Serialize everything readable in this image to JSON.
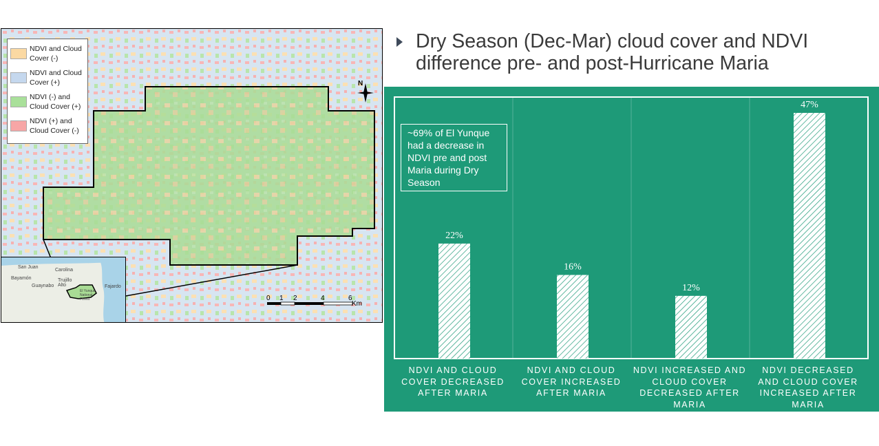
{
  "title": "Dry Season (Dec-Mar) cloud cover and NDVI difference pre- and post-Hurricane Maria",
  "map": {
    "legend": [
      {
        "label": "NDVI and Cloud Cover (-)",
        "color": "#fbd9a3"
      },
      {
        "label": "NDVI and Cloud Cover (+)",
        "color": "#c5d8ee"
      },
      {
        "label": "NDVI (-) and Cloud Cover (+)",
        "color": "#a9e09a"
      },
      {
        "label": "NDVI (+) and Cloud Cover (-)",
        "color": "#f7a6a6"
      }
    ],
    "north_label": "N",
    "scale_ticks": [
      "0",
      "1",
      "2",
      "4",
      "6"
    ],
    "scale_unit": "Km",
    "inset_places": [
      "San Juan",
      "Carolina",
      "Bayamón",
      "Guaynabo",
      "Trujillo Alto",
      "Fajardo",
      "El Yunque National Forest"
    ]
  },
  "chart_data": {
    "type": "bar",
    "categories": [
      "NDVI AND CLOUD COVER DECREASED AFTER MARIA",
      "NDVI AND CLOUD COVER INCREASED AFTER MARIA",
      "NDVI INCREASED AND CLOUD COVER DECREASED AFTER MARIA",
      "NDVI DECREASED AND CLOUD COVER INCREASED AFTER MARIA"
    ],
    "values": [
      22,
      16,
      12,
      47
    ],
    "labels": [
      "22%",
      "16%",
      "12%",
      "47%"
    ],
    "unit": "%",
    "ylim": [
      0,
      47
    ],
    "annotation": "~69% of El Yunque had a decrease in NDVI pre and post Maria during Dry Season",
    "colors": {
      "background": "#1e9a78",
      "bar": "#ffffff"
    }
  }
}
